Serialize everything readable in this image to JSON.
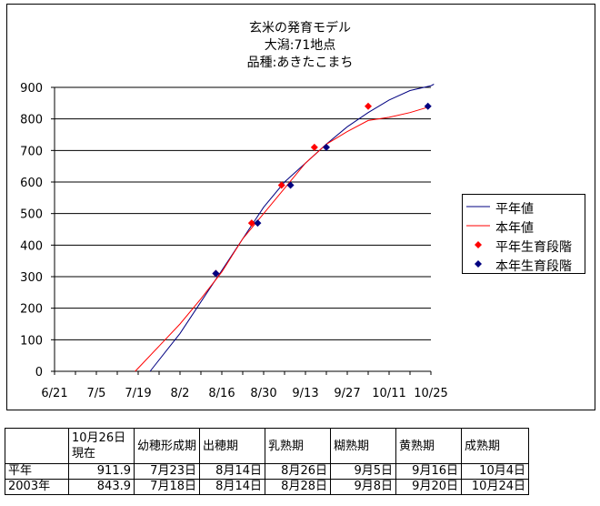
{
  "chart_data": {
    "type": "line",
    "title_lines": [
      "玄米の発育モデル",
      "大潟:71地点",
      "品種:あきたこまち"
    ],
    "xlabel": "",
    "ylabel": "",
    "x_axis": {
      "min": "6/21",
      "max": "10/25",
      "tick_labels": [
        "6/21",
        "7/5",
        "7/19",
        "8/2",
        "8/16",
        "8/30",
        "9/13",
        "9/27",
        "10/11",
        "10/25"
      ]
    },
    "y_axis": {
      "min": 0,
      "max": 900,
      "tick_labels": [
        "0",
        "100",
        "200",
        "300",
        "400",
        "500",
        "600",
        "700",
        "800",
        "900"
      ]
    },
    "grid": "horizontal",
    "legend_position": "right",
    "series": [
      {
        "name": "平年値",
        "kind": "line",
        "color": "#000080",
        "x": [
          "7/23",
          "8/2",
          "8/9",
          "8/16",
          "8/23",
          "8/30",
          "9/6",
          "9/13",
          "9/20",
          "9/27",
          "10/4",
          "10/11",
          "10/18",
          "10/25",
          "10/26"
        ],
        "y": [
          0,
          120,
          220,
          320,
          420,
          520,
          600,
          660,
          720,
          775,
          820,
          860,
          890,
          905,
          910
        ]
      },
      {
        "name": "本年値",
        "kind": "line",
        "color": "#ff0000",
        "x": [
          "7/18",
          "7/26",
          "8/2",
          "8/9",
          "8/16",
          "8/23",
          "8/30",
          "9/6",
          "9/13",
          "9/20",
          "9/27",
          "10/4",
          "10/11",
          "10/18",
          "10/25"
        ],
        "y": [
          0,
          80,
          150,
          230,
          315,
          420,
          500,
          580,
          660,
          720,
          760,
          795,
          805,
          820,
          840
        ]
      },
      {
        "name": "平年生育段階",
        "kind": "markers",
        "color": "#ff0000",
        "x": [
          "8/14",
          "8/26",
          "9/5",
          "9/16",
          "10/4"
        ],
        "y": [
          310,
          470,
          590,
          710,
          840
        ]
      },
      {
        "name": "本年生育段階",
        "kind": "markers",
        "color": "#000080",
        "x": [
          "8/14",
          "8/28",
          "9/8",
          "9/20",
          "10/24"
        ],
        "y": [
          310,
          470,
          590,
          710,
          840
        ]
      }
    ]
  },
  "stage_table": {
    "header": [
      "",
      "10月26日現在",
      "幼穂形成期",
      "出穂期",
      "乳熟期",
      "糊熟期",
      "黄熟期",
      "成熟期"
    ],
    "rows": [
      [
        "平年",
        "911.9",
        "7月23日",
        "8月14日",
        "8月26日",
        "9月5日",
        "9月16日",
        "10月4日"
      ],
      [
        "2003年",
        "843.9",
        "7月18日",
        "8月14日",
        "8月28日",
        "9月8日",
        "9月20日",
        "10月24日"
      ]
    ]
  }
}
